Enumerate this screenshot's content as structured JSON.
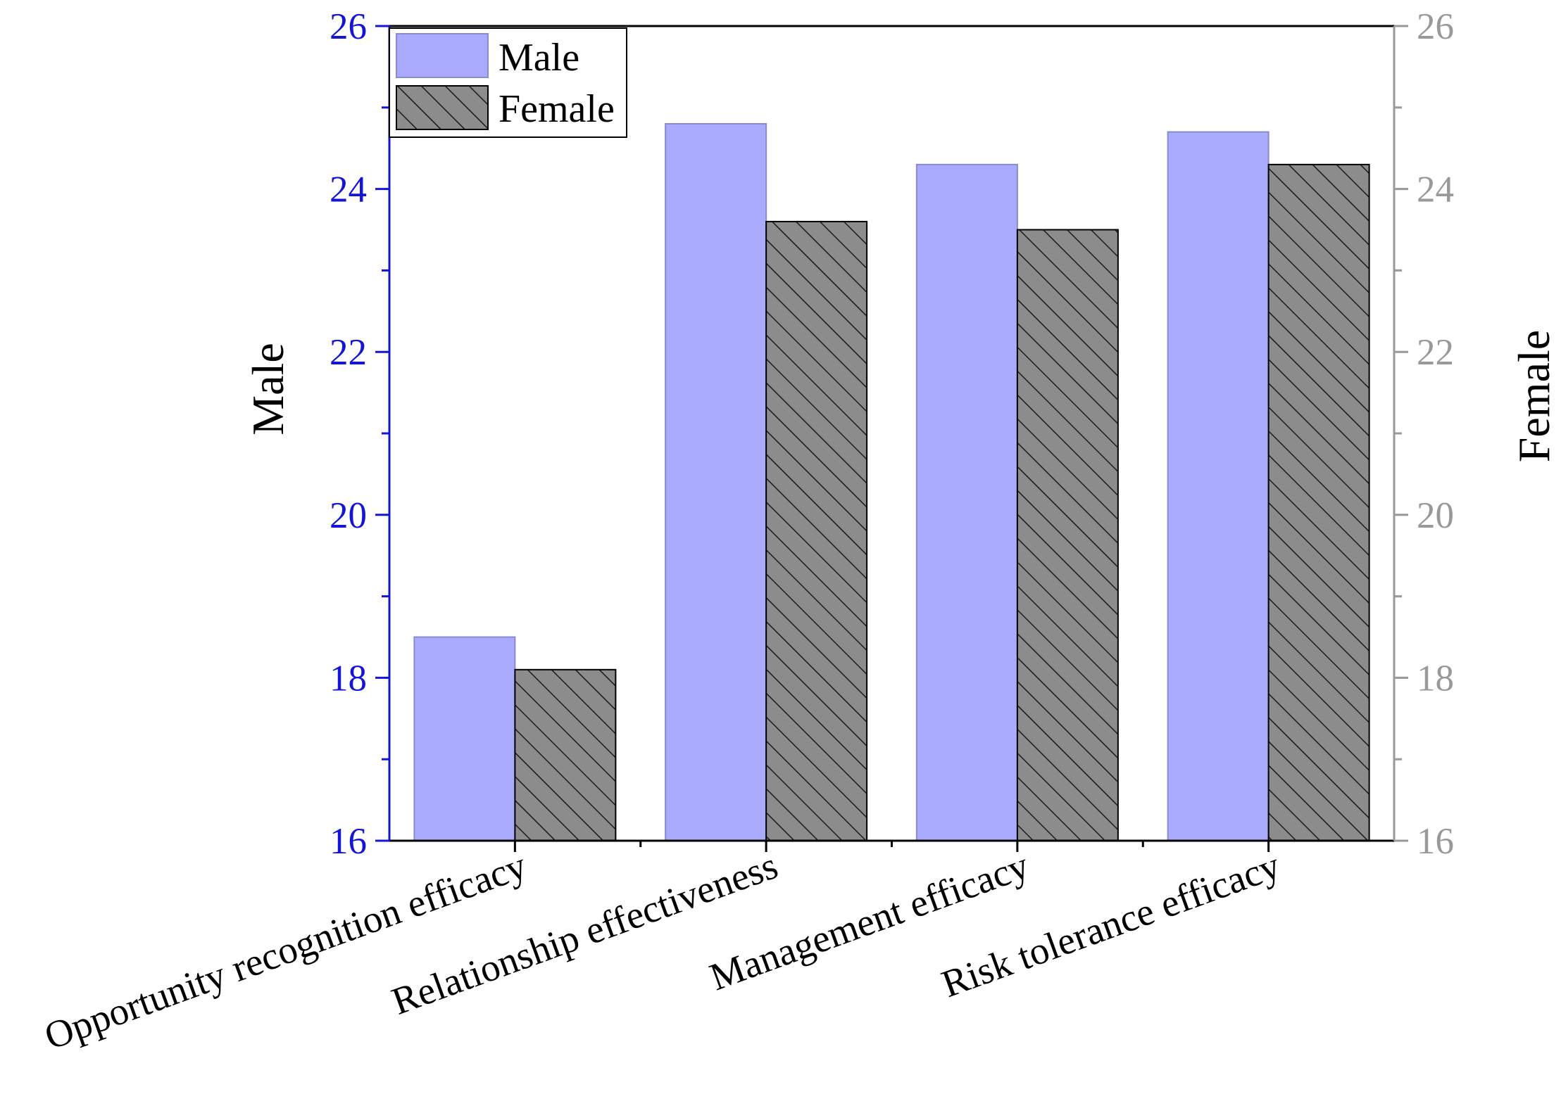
{
  "chart_data": {
    "type": "bar",
    "categories": [
      "Opportunity recognition efficacy",
      "Relationship effectiveness",
      "Management efficacy",
      "Risk tolerance efficacy"
    ],
    "series": [
      {
        "name": "Male",
        "axis": "left",
        "values": [
          18.5,
          24.8,
          24.3,
          24.7
        ]
      },
      {
        "name": "Female",
        "axis": "right",
        "values": [
          18.1,
          23.6,
          23.5,
          24.3
        ]
      }
    ],
    "ylabel_left": "Male",
    "ylabel_right": "Female",
    "ylim": [
      16,
      26
    ],
    "yticks": [
      "16",
      "18",
      "20",
      "22",
      "24",
      "26"
    ],
    "legend": "top-left",
    "grid": false,
    "colors": {
      "male_fill": "#aaaaff",
      "male_stroke": "#8a8ad0",
      "female_fill": "#8c8c8c",
      "female_hatch": "#1a1a1a",
      "left_axis": "#1515d6",
      "right_axis": "#999999",
      "frame": "#000000"
    }
  }
}
